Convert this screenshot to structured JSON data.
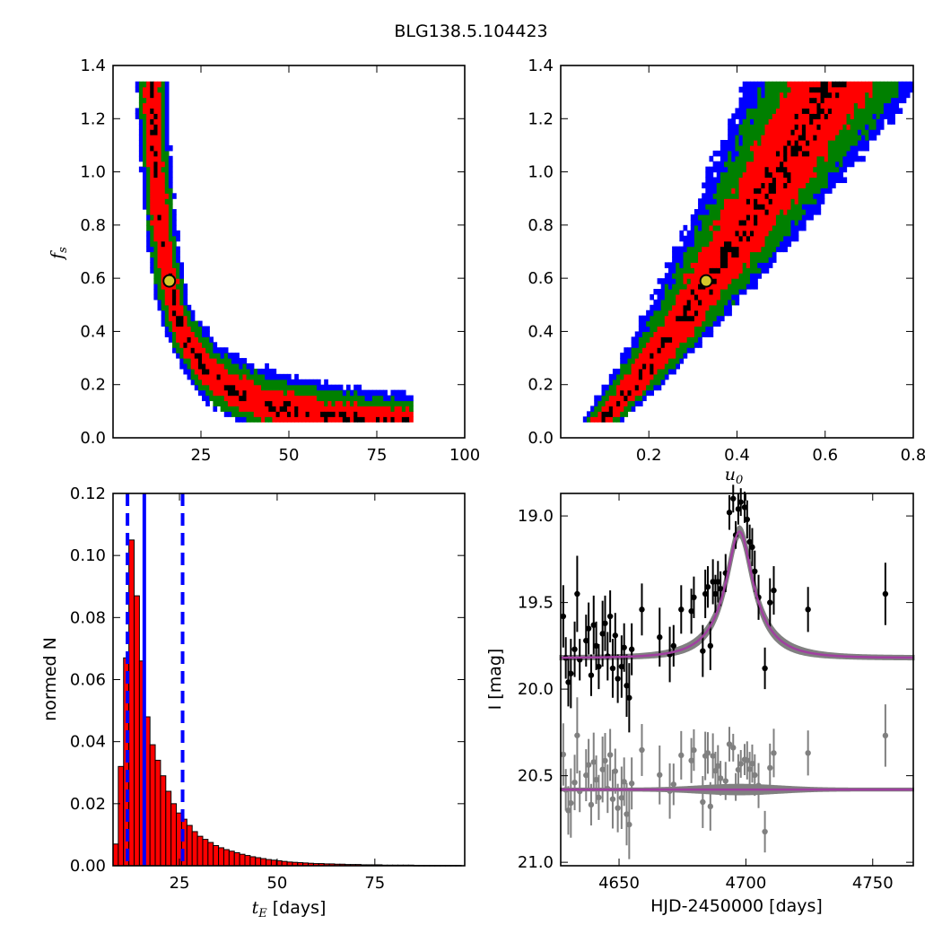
{
  "title": "BLG138.5.104423",
  "colors": {
    "sigma1": "#000000",
    "sigma2": "#ff0000",
    "sigma3": "#008000",
    "sigma4": "#0000ff",
    "best_fit_marker": "#d4c82a",
    "hist_bar": "#ff0000",
    "vline": "#0000ff",
    "data": "#000000",
    "residual": "#808080",
    "model_band": "#808080",
    "model": "#a040a0"
  },
  "chart_data": [
    {
      "id": "fs-vs-tE",
      "type": "heatmap",
      "xlabel": "",
      "ylabel_main": "f",
      "ylabel_sub": "s",
      "xlim": [
        0,
        100
      ],
      "ylim": [
        0,
        1.4
      ],
      "xticks": [
        25,
        50,
        75,
        100
      ],
      "yticks": [
        0.0,
        0.2,
        0.4,
        0.6,
        0.8,
        1.0,
        1.2,
        1.4
      ],
      "levels": [
        "1-sigma",
        "2-sigma",
        "3-sigma",
        "4-sigma"
      ],
      "best_fit": [
        16,
        0.59
      ]
    },
    {
      "id": "fs-vs-u0",
      "type": "heatmap",
      "xlabel_main": "u",
      "xlabel_sub": "0",
      "ylabel": "",
      "xlim": [
        0,
        0.8
      ],
      "ylim": [
        0,
        1.4
      ],
      "xticks": [
        0.2,
        0.4,
        0.6,
        0.8
      ],
      "yticks": [
        0.0,
        0.2,
        0.4,
        0.6,
        0.8,
        1.0,
        1.2,
        1.4
      ],
      "levels": [
        "1-sigma",
        "2-sigma",
        "3-sigma",
        "4-sigma"
      ],
      "best_fit": [
        0.33,
        0.59
      ]
    },
    {
      "id": "tE-histogram",
      "type": "bar",
      "xlabel_main": "t",
      "xlabel_sub": "E",
      "xlabel_unit": "[days]",
      "ylabel": "normed N",
      "xlim": [
        8,
        98
      ],
      "ylim": [
        0,
        0.12
      ],
      "xticks": [
        25,
        50,
        75
      ],
      "yticks": [
        0.0,
        0.02,
        0.04,
        0.06,
        0.08,
        0.1,
        0.12
      ],
      "ytick_labels": [
        "0.00",
        "0.02",
        "0.04",
        "0.06",
        "0.08",
        "0.10",
        "0.12"
      ],
      "bin_width": 1.35,
      "bin_start": 8,
      "values": [
        0.007,
        0.032,
        0.067,
        0.105,
        0.087,
        0.066,
        0.048,
        0.039,
        0.034,
        0.029,
        0.024,
        0.02,
        0.017,
        0.015,
        0.013,
        0.011,
        0.0095,
        0.0085,
        0.0075,
        0.0065,
        0.0058,
        0.0052,
        0.0047,
        0.0042,
        0.0037,
        0.0033,
        0.0029,
        0.0026,
        0.0023,
        0.002,
        0.0018,
        0.0016,
        0.0014,
        0.0012,
        0.0011,
        0.001,
        0.0009,
        0.0008,
        0.0007,
        0.0007,
        0.0006,
        0.0006,
        0.0005,
        0.0005,
        0.0004,
        0.0004,
        0.0004,
        0.0003,
        0.0003,
        0.0003,
        0.0003,
        0.0002,
        0.0002,
        0.0002,
        0.0002,
        0.0002,
        0.0002,
        0.0001,
        0.0001,
        0.0001,
        0.0001,
        0.0001,
        0.0001,
        0.0001,
        0.0001,
        0.0001
      ],
      "vlines": [
        {
          "x": 11.7,
          "style": "dashed"
        },
        {
          "x": 16.0,
          "style": "solid"
        },
        {
          "x": 25.8,
          "style": "dashed"
        }
      ]
    },
    {
      "id": "light-curve",
      "type": "scatter",
      "xlabel": "HJD-2450000 [days]",
      "ylabel": "I [mag]",
      "xlim": [
        4627,
        4766
      ],
      "ylim": [
        21.02,
        18.87
      ],
      "y_inverted": true,
      "xticks": [
        4650,
        4700,
        4750
      ],
      "yticks": [
        19.0,
        19.5,
        20.0,
        20.5,
        21.0
      ],
      "ytick_labels": [
        "19.0",
        "19.5",
        "20.0",
        "20.5",
        "21.0"
      ],
      "model": {
        "baseline": 19.82,
        "peak": 19.09,
        "t0": 4697.5,
        "tE": 16,
        "u0": 0.33
      },
      "residual_offset": 20.58,
      "points": [
        {
          "x": 4628.0,
          "y": 19.58,
          "e": 0.18
        },
        {
          "x": 4629.0,
          "y": 19.82,
          "e": 0.12
        },
        {
          "x": 4630.0,
          "y": 19.96,
          "e": 0.14
        },
        {
          "x": 4631.0,
          "y": 19.91,
          "e": 0.2
        },
        {
          "x": 4632.5,
          "y": 19.77,
          "e": 0.16
        },
        {
          "x": 4633.5,
          "y": 19.45,
          "e": 0.22
        },
        {
          "x": 4634.5,
          "y": 19.83,
          "e": 0.12
        },
        {
          "x": 4637.0,
          "y": 19.72,
          "e": 0.15
        },
        {
          "x": 4638.0,
          "y": 19.65,
          "e": 0.15
        },
        {
          "x": 4639.0,
          "y": 19.92,
          "e": 0.12
        },
        {
          "x": 4640.0,
          "y": 19.63,
          "e": 0.17
        },
        {
          "x": 4641.0,
          "y": 19.75,
          "e": 0.14
        },
        {
          "x": 4642.0,
          "y": 19.87,
          "e": 0.13
        },
        {
          "x": 4643.5,
          "y": 19.68,
          "e": 0.19
        },
        {
          "x": 4644.5,
          "y": 19.62,
          "e": 0.16
        },
        {
          "x": 4645.5,
          "y": 19.81,
          "e": 0.14
        },
        {
          "x": 4646.5,
          "y": 19.58,
          "e": 0.15
        },
        {
          "x": 4647.5,
          "y": 19.88,
          "e": 0.17
        },
        {
          "x": 4648.5,
          "y": 19.69,
          "e": 0.13
        },
        {
          "x": 4649.5,
          "y": 19.94,
          "e": 0.14
        },
        {
          "x": 4651.0,
          "y": 19.87,
          "e": 0.18
        },
        {
          "x": 4652.0,
          "y": 19.76,
          "e": 0.14
        },
        {
          "x": 4653.0,
          "y": 19.98,
          "e": 0.18
        },
        {
          "x": 4654.0,
          "y": 20.05,
          "e": 0.2
        },
        {
          "x": 4655.0,
          "y": 19.77,
          "e": 0.15
        },
        {
          "x": 4659.0,
          "y": 19.54,
          "e": 0.15
        },
        {
          "x": 4666.0,
          "y": 19.7,
          "e": 0.17
        },
        {
          "x": 4670.0,
          "y": 19.8,
          "e": 0.16
        },
        {
          "x": 4671.5,
          "y": 19.75,
          "e": 0.12
        },
        {
          "x": 4674.5,
          "y": 19.54,
          "e": 0.14
        },
        {
          "x": 4678.5,
          "y": 19.55,
          "e": 0.13
        },
        {
          "x": 4679.5,
          "y": 19.47,
          "e": 0.12
        },
        {
          "x": 4683.0,
          "y": 19.78,
          "e": 0.15
        },
        {
          "x": 4684.0,
          "y": 19.45,
          "e": 0.14
        },
        {
          "x": 4685.0,
          "y": 19.41,
          "e": 0.12
        },
        {
          "x": 4686.0,
          "y": 19.75,
          "e": 0.14
        },
        {
          "x": 4687.0,
          "y": 19.38,
          "e": 0.13
        },
        {
          "x": 4688.0,
          "y": 19.45,
          "e": 0.11
        },
        {
          "x": 4689.0,
          "y": 19.38,
          "e": 0.12
        },
        {
          "x": 4690.0,
          "y": 19.42,
          "e": 0.1
        },
        {
          "x": 4692.0,
          "y": 19.33,
          "e": 0.11
        },
        {
          "x": 4693.5,
          "y": 18.98,
          "e": 0.1
        },
        {
          "x": 4695.0,
          "y": 18.9,
          "e": 0.08
        },
        {
          "x": 4696.0,
          "y": 19.11,
          "e": 0.08
        },
        {
          "x": 4697.0,
          "y": 18.96,
          "e": 0.09
        },
        {
          "x": 4698.0,
          "y": 18.92,
          "e": 0.08
        },
        {
          "x": 4699.5,
          "y": 18.95,
          "e": 0.09
        },
        {
          "x": 4700.5,
          "y": 19.02,
          "e": 0.11
        },
        {
          "x": 4701.5,
          "y": 19.15,
          "e": 0.1
        },
        {
          "x": 4702.5,
          "y": 19.18,
          "e": 0.11
        },
        {
          "x": 4703.5,
          "y": 19.32,
          "e": 0.12
        },
        {
          "x": 4705.0,
          "y": 19.47,
          "e": 0.13
        },
        {
          "x": 4707.5,
          "y": 19.88,
          "e": 0.12
        },
        {
          "x": 4709.5,
          "y": 19.5,
          "e": 0.14
        },
        {
          "x": 4711.0,
          "y": 19.43,
          "e": 0.14
        },
        {
          "x": 4724.5,
          "y": 19.54,
          "e": 0.13
        },
        {
          "x": 4755.0,
          "y": 19.45,
          "e": 0.18
        }
      ]
    }
  ]
}
